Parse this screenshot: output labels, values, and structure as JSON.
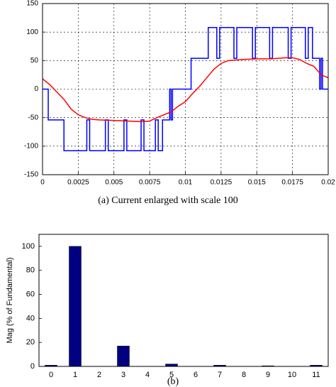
{
  "chart_data": [
    {
      "type": "line",
      "caption": "(a) Current enlarged with scale 100",
      "xlim": [
        0,
        0.02
      ],
      "ylim": [
        -150,
        150
      ],
      "xticks": [
        0,
        0.0025,
        0.005,
        0.0075,
        0.01,
        0.0125,
        0.015,
        0.0175,
        0.02
      ],
      "yticks": [
        -150,
        -100,
        -50,
        0,
        50,
        100,
        150
      ],
      "grid": true,
      "series": [
        {
          "color": "#0000ff",
          "x": [
            0,
            0.0004,
            0.0004,
            0.0015,
            0.0015,
            0.0031,
            0.0031,
            0.0033,
            0.0033,
            0.0044,
            0.0044,
            0.0046,
            0.0046,
            0.0057,
            0.0057,
            0.0059,
            0.0059,
            0.0069,
            0.0069,
            0.0071,
            0.0071,
            0.0079,
            0.0079,
            0.0081,
            0.0081,
            0.0084,
            0.0084,
            0.0089,
            0.0089,
            0.009,
            0.009,
            0.0091,
            0.0091,
            0.0104,
            0.0104,
            0.0116,
            0.0116,
            0.0122,
            0.0122,
            0.0124,
            0.0124,
            0.0134,
            0.0134,
            0.0136,
            0.0136,
            0.0147,
            0.0147,
            0.0149,
            0.0149,
            0.0159,
            0.0159,
            0.0161,
            0.0161,
            0.0172,
            0.0172,
            0.0174,
            0.0174,
            0.0184,
            0.0184,
            0.0186,
            0.0186,
            0.0189,
            0.0189,
            0.0194,
            0.0194,
            0.0195,
            0.0195,
            0.0196,
            0.0196,
            0.02
          ],
          "values": [
            0,
            0,
            -54,
            -54,
            -108,
            -108,
            -54,
            -54,
            -108,
            -108,
            -54,
            -54,
            -108,
            -108,
            -54,
            -54,
            -108,
            -108,
            -54,
            -54,
            -108,
            -108,
            -54,
            -54,
            -108,
            -108,
            -54,
            -54,
            0,
            0,
            -54,
            -54,
            0,
            0,
            54,
            54,
            108,
            108,
            54,
            54,
            108,
            108,
            54,
            54,
            108,
            108,
            54,
            54,
            108,
            108,
            54,
            54,
            108,
            108,
            54,
            54,
            108,
            108,
            54,
            54,
            108,
            108,
            54,
            54,
            0,
            0,
            54,
            54,
            0,
            0
          ]
        },
        {
          "color": "#ff0000",
          "x": [
            0,
            0.0005,
            0.001,
            0.0015,
            0.002,
            0.0025,
            0.003,
            0.0035,
            0.004,
            0.005,
            0.006,
            0.007,
            0.0075,
            0.008,
            0.0085,
            0.009,
            0.0095,
            0.01,
            0.0105,
            0.011,
            0.0115,
            0.012,
            0.0125,
            0.013,
            0.014,
            0.015,
            0.016,
            0.017,
            0.0175,
            0.018,
            0.0185,
            0.019,
            0.0195,
            0.02
          ],
          "values": [
            18,
            8,
            -5,
            -18,
            -35,
            -45,
            -50,
            -53,
            -54,
            -55,
            -56,
            -57,
            -56,
            -50,
            -45,
            -40,
            -30,
            -22,
            -8,
            5,
            20,
            35,
            45,
            50,
            52,
            53,
            53,
            55,
            55,
            52,
            45,
            40,
            25,
            20
          ]
        }
      ]
    },
    {
      "type": "bar",
      "caption": "(b)",
      "ylabel": "Mag (% of Fundamental)",
      "categories": [
        "0",
        "1",
        "2",
        "3",
        "4",
        "5",
        "6",
        "7",
        "8",
        "9",
        "10",
        "11"
      ],
      "values": [
        1,
        100,
        0,
        17,
        0,
        2,
        0,
        1,
        0,
        0.5,
        0,
        1
      ],
      "color": "#000080",
      "ylim": [
        0,
        110
      ],
      "yticks": [
        0,
        20,
        40,
        60,
        80,
        100
      ],
      "grid": false
    }
  ]
}
